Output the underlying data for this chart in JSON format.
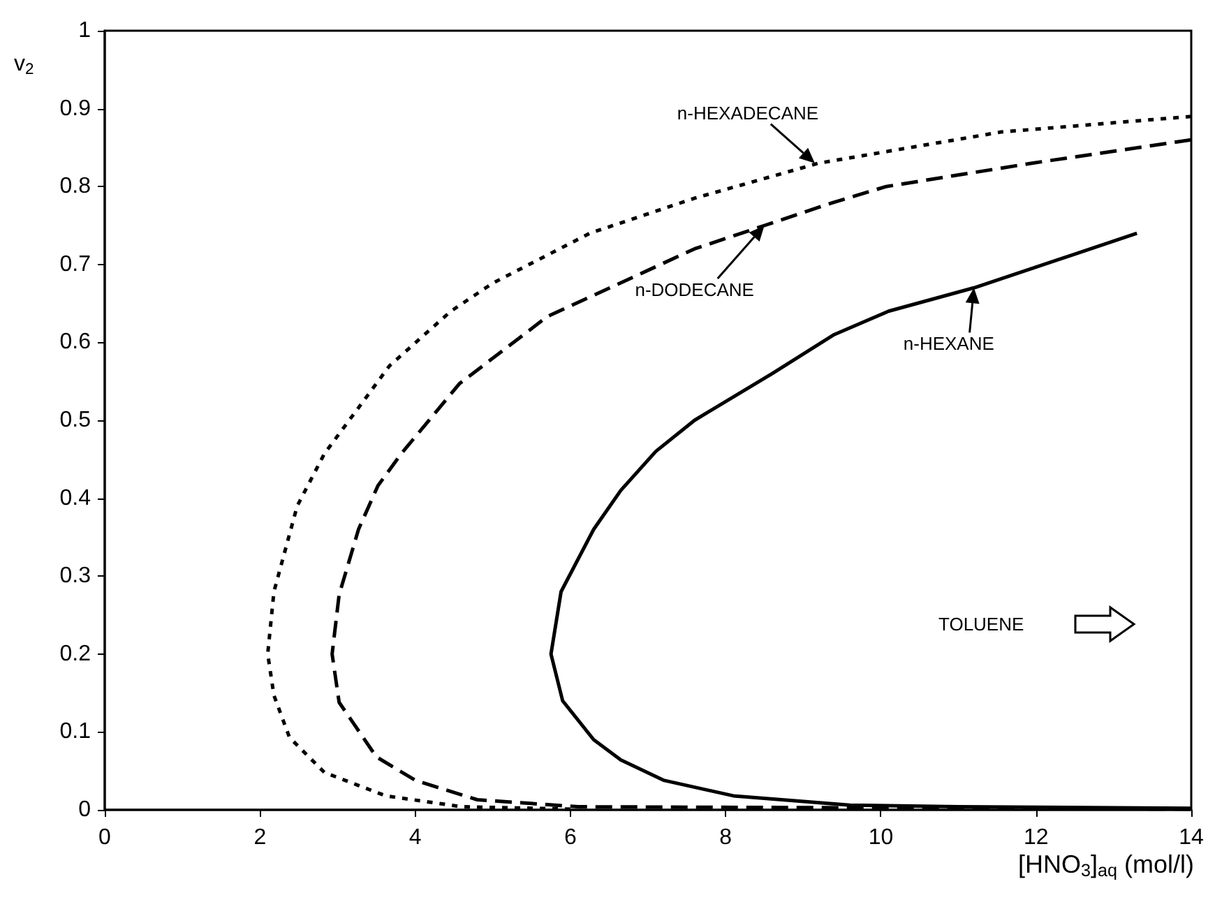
{
  "chart_data": {
    "type": "line",
    "xlabel": "[HNO$_{3}$]$_{aq}$ (mol/l)",
    "ylabel": "v$_{2}$",
    "xlim": [
      0,
      14
    ],
    "xticks": [
      0,
      2,
      4,
      6,
      8,
      10,
      12,
      14
    ],
    "ylim": [
      0,
      1
    ],
    "yticks": [
      0,
      0.1,
      0.2,
      0.3,
      0.4,
      0.5,
      0.6,
      0.7,
      0.8,
      0.9,
      1
    ],
    "grid": false,
    "marker": "none",
    "series": [
      {
        "color": "#000000",
        "line_style": "solid",
        "x": [
          13.3,
          11.2,
          10.1,
          9.4,
          8.6,
          7.6,
          7.1,
          6.65,
          6.3,
          5.88,
          5.75,
          5.9,
          6.3,
          6.65,
          7.2,
          8.1,
          9.6,
          11,
          14
        ],
        "values": [
          0.74,
          0.67,
          0.64,
          0.61,
          0.56,
          0.5,
          0.46,
          0.41,
          0.36,
          0.28,
          0.2,
          0.14,
          0.09,
          0.064,
          0.038,
          0.018,
          0.006,
          0.004,
          0.002
        ]
      },
      {
        "color": "#000000",
        "line_style": "dashed",
        "x": [
          14,
          11.95,
          10.07,
          9.4,
          8.5,
          7.6,
          5.7,
          5.4,
          4.57,
          3.82,
          3.52,
          3.27,
          3.02,
          2.93,
          3.02,
          3.5,
          4.0,
          4.8,
          6.1,
          14
        ],
        "values": [
          0.86,
          0.83,
          0.8,
          0.78,
          0.75,
          0.72,
          0.633,
          0.61,
          0.547,
          0.457,
          0.416,
          0.36,
          0.276,
          0.2,
          0.138,
          0.068,
          0.038,
          0.013,
          0.004,
          0.001
        ]
      },
      {
        "color": "#000000",
        "line_style": "dotted",
        "x": [
          14,
          11.55,
          9.2,
          7.6,
          6.25,
          5.0,
          4.46,
          3.67,
          2.83,
          2.48,
          2.18,
          2.1,
          2.18,
          2.38,
          2.83,
          3.62,
          4.6,
          6
        ],
        "values": [
          0.89,
          0.87,
          0.83,
          0.785,
          0.74,
          0.676,
          0.64,
          0.57,
          0.457,
          0.39,
          0.28,
          0.2,
          0.147,
          0.093,
          0.048,
          0.018,
          0.004,
          0.001
        ]
      }
    ],
    "annotations": [
      {
        "text": "n-HEXADECANE",
        "x": 9.15,
        "y": 0.83
      },
      {
        "text": "n-DODECANE",
        "x": 8.5,
        "y": 0.75
      },
      {
        "text": "n-HEXANE",
        "x": 11.2,
        "y": 0.67
      },
      "TOLUENE"
    ]
  }
}
